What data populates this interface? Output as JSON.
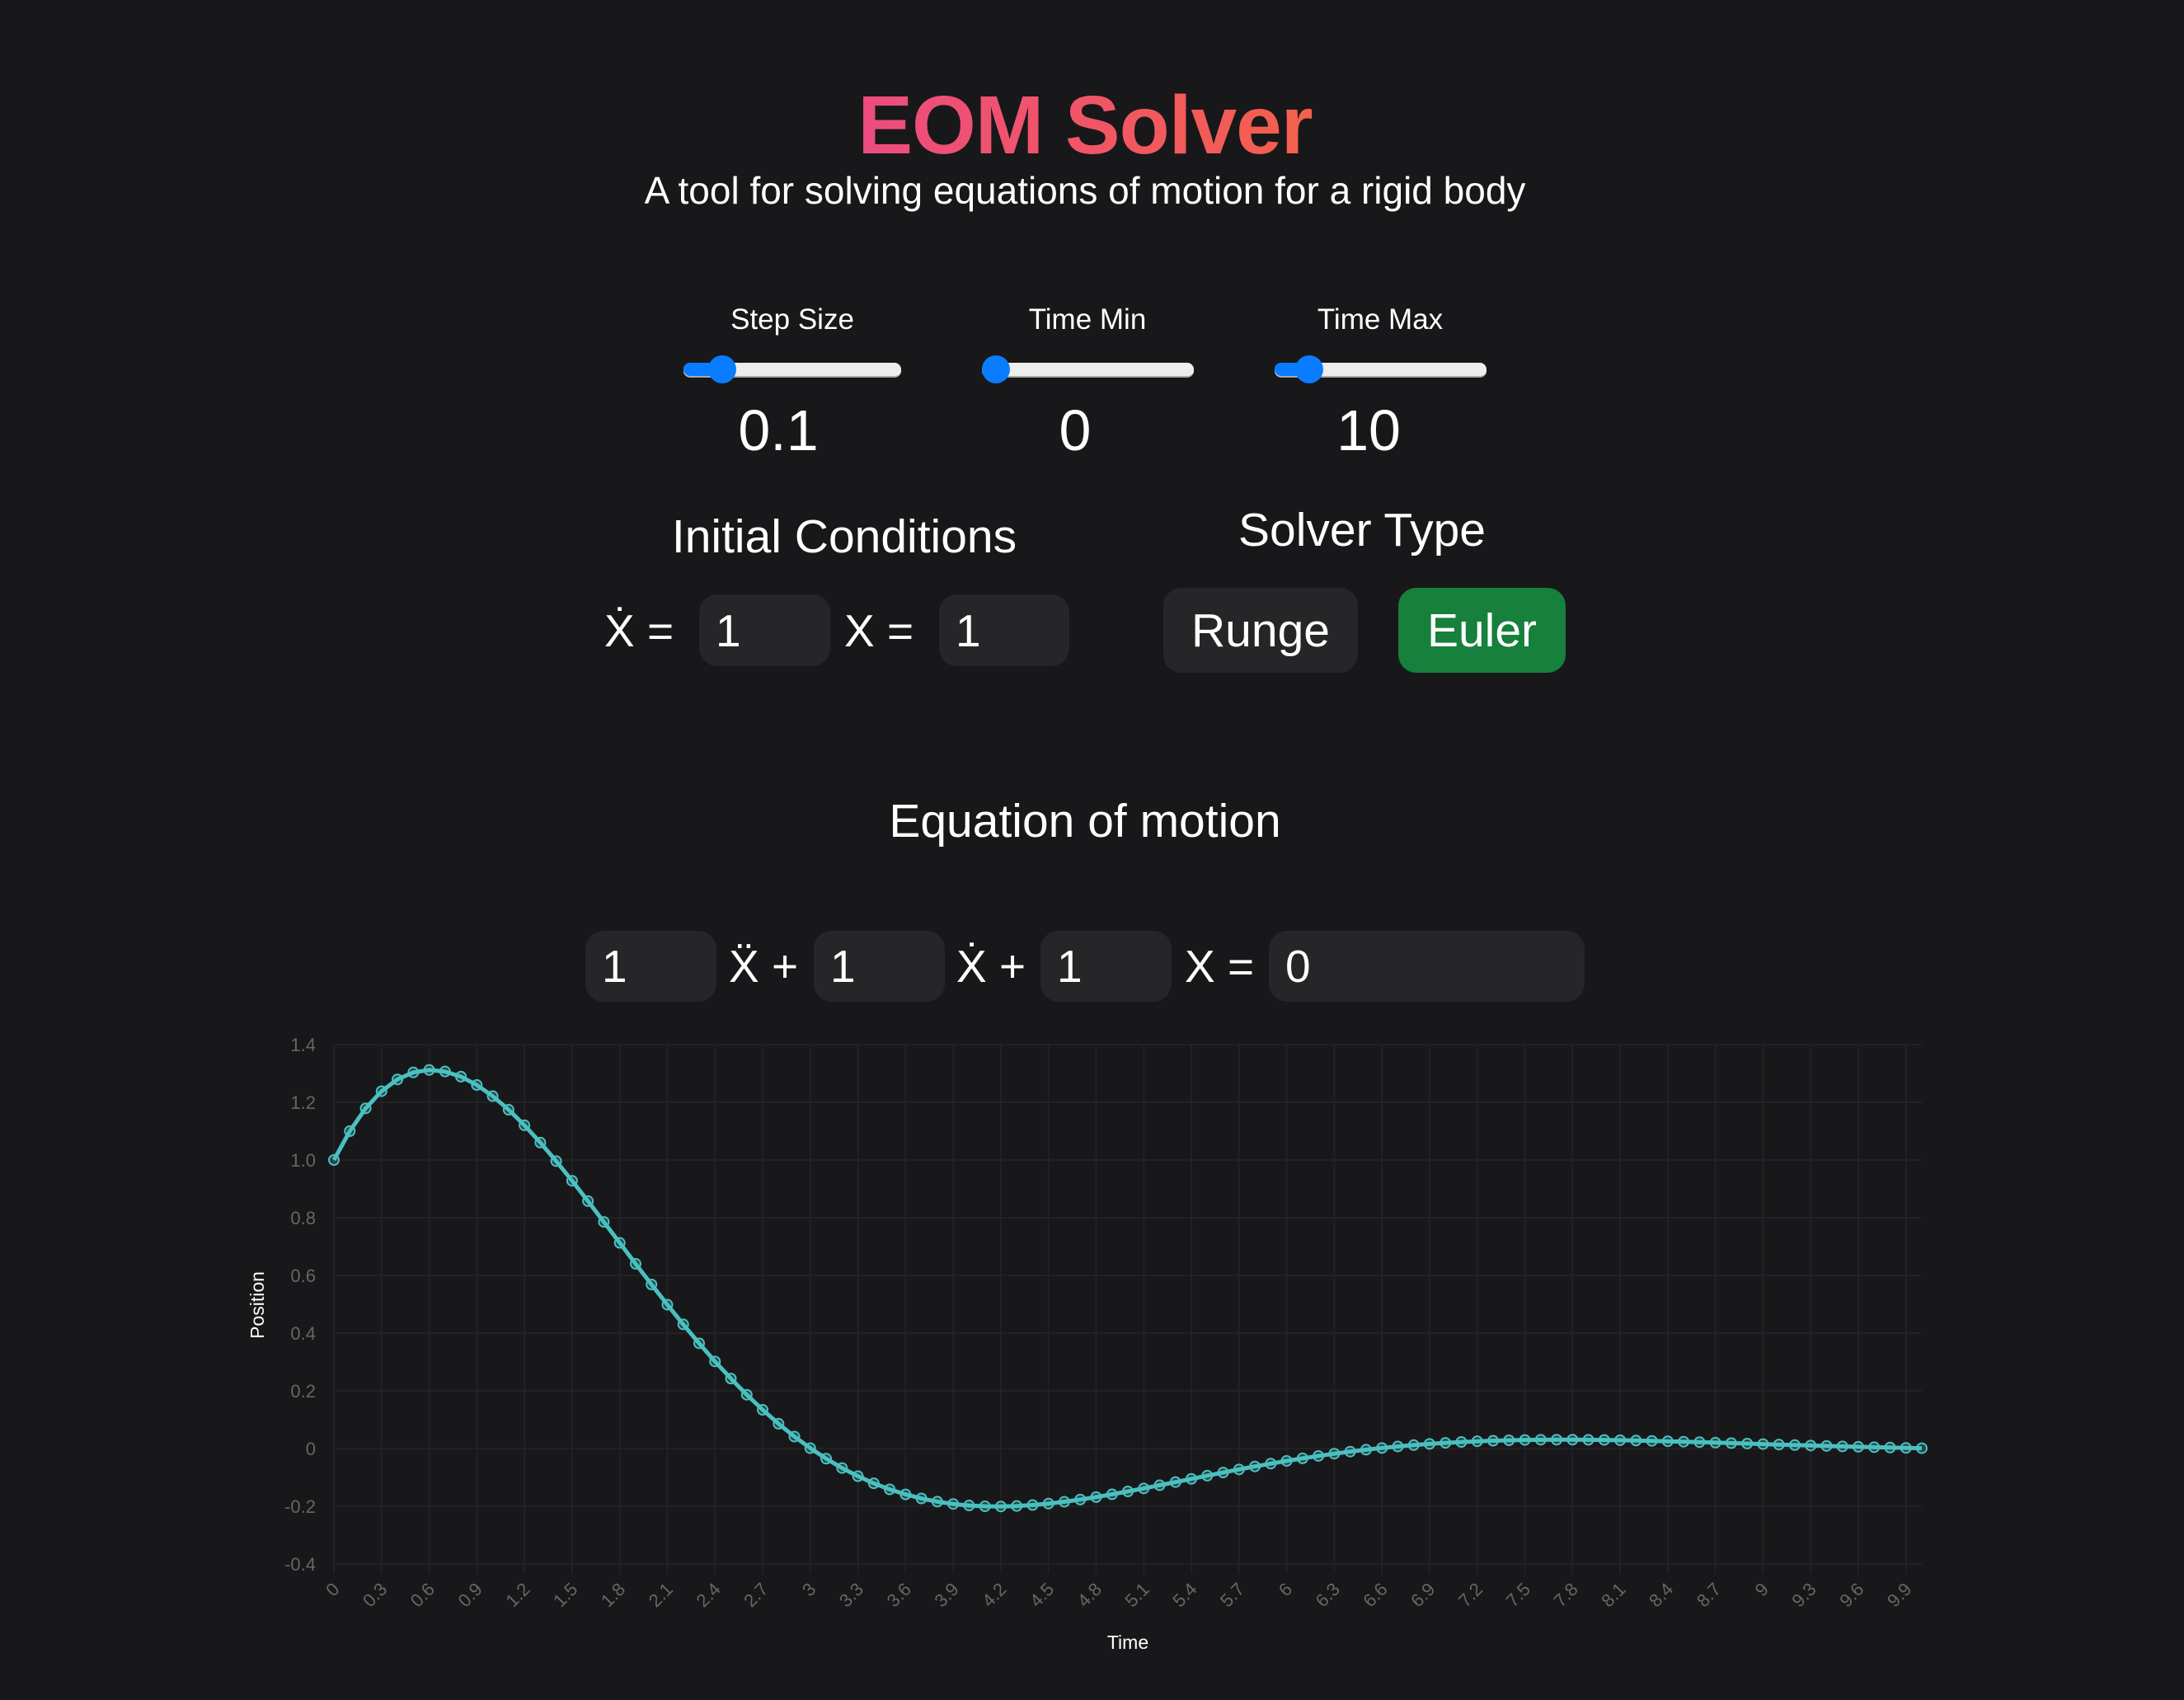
{
  "header": {
    "title": "EOM Solver",
    "subtitle": "A tool for solving equations of motion for a rigid body"
  },
  "sliders": [
    {
      "label": "Step Size",
      "value": "0.1",
      "fraction": 0.13
    },
    {
      "label": "Time Min",
      "value": "0",
      "fraction": 0.0
    },
    {
      "label": "Time Max",
      "value": "10",
      "fraction": 0.11
    }
  ],
  "initial_conditions": {
    "heading": "Initial Conditions",
    "velocity_label": "Ẋ =",
    "velocity_value": "1",
    "position_label": "X =",
    "position_value": "1"
  },
  "solver": {
    "heading": "Solver Type",
    "options": [
      "Runge",
      "Euler"
    ],
    "selected": "Euler",
    "selected_color": "#16803c"
  },
  "equation": {
    "heading": "Equation of motion",
    "coef_accel": "1",
    "accel_label": "Ẍ +",
    "coef_vel": "1",
    "vel_label": "Ẋ +",
    "coef_pos": "1",
    "pos_label": "X =",
    "rhs": "0"
  },
  "chart_data": {
    "type": "line",
    "xlabel": "Time",
    "ylabel": "Position",
    "ylim": [
      -0.4,
      1.4
    ],
    "yticks": [
      "1.4",
      "1.2",
      "1.0",
      "0.8",
      "0.6",
      "0.4",
      "0.2",
      "0",
      "-0.2",
      "-0.4"
    ],
    "xtick_labels": [
      "0",
      "0.3",
      "0.6",
      "0.9",
      "1.2",
      "1.5",
      "1.8",
      "2.1",
      "2.4",
      "2.7",
      "3",
      "3.3",
      "3.6",
      "3.9",
      "4.2",
      "4.5",
      "4.8",
      "5.1",
      "5.4",
      "5.7",
      "6",
      "6.3",
      "6.6",
      "6.9",
      "7.2",
      "7.5",
      "7.8",
      "8.1",
      "8.4",
      "8.7",
      "9",
      "9.3",
      "9.6",
      "9.9"
    ],
    "grid": true,
    "line_color": "#4bc0c0",
    "x_start": 0,
    "x_step": 0.1,
    "values": [
      1,
      1.1,
      1.179,
      1.2383,
      1.2793,
      1.3034,
      1.3121,
      1.3067,
      1.2889,
      1.2599,
      1.2213,
      1.1742,
      1.1202,
      1.0603,
      0.9959,
      0.9279,
      0.8574,
      0.7854,
      0.7128,
      0.6403,
      0.5686,
      0.4984,
      0.4303,
      0.3647,
      0.3019,
      0.2425,
      0.1865,
      0.1343,
      0.086,
      0.0416,
      0.0013,
      -0.0351,
      -0.0674,
      -0.0958,
      -0.1205,
      -0.1414,
      -0.1589,
      -0.173,
      -0.184,
      -0.192,
      -0.1973,
      -0.2001,
      -0.2007,
      -0.1991,
      -0.1958,
      -0.1908,
      -0.1844,
      -0.1768,
      -0.1682,
      -0.1587,
      -0.1486,
      -0.1381,
      -0.1272,
      -0.1162,
      -0.105,
      -0.094,
      -0.0831,
      -0.0724,
      -0.0621,
      -0.0523,
      -0.0428,
      -0.0339,
      -0.0256,
      -0.0178,
      -0.0106,
      -0.0041,
      0.0019,
      0.0072,
      0.012,
      0.0161,
      0.0197,
      0.0227,
      0.0252,
      0.0271,
      0.0286,
      0.0297,
      0.0304,
      0.0307,
      0.0307,
      0.0303,
      0.0297,
      0.0289,
      0.0278,
      0.0266,
      0.0252,
      0.0237,
      0.0222,
      0.0205,
      0.0189,
      0.0172,
      0.0155,
      0.0138,
      0.0121,
      0.0105,
      0.009,
      0.0075,
      0.006,
      0.0047,
      0.0035,
      0.0023,
      0.0012
    ]
  }
}
